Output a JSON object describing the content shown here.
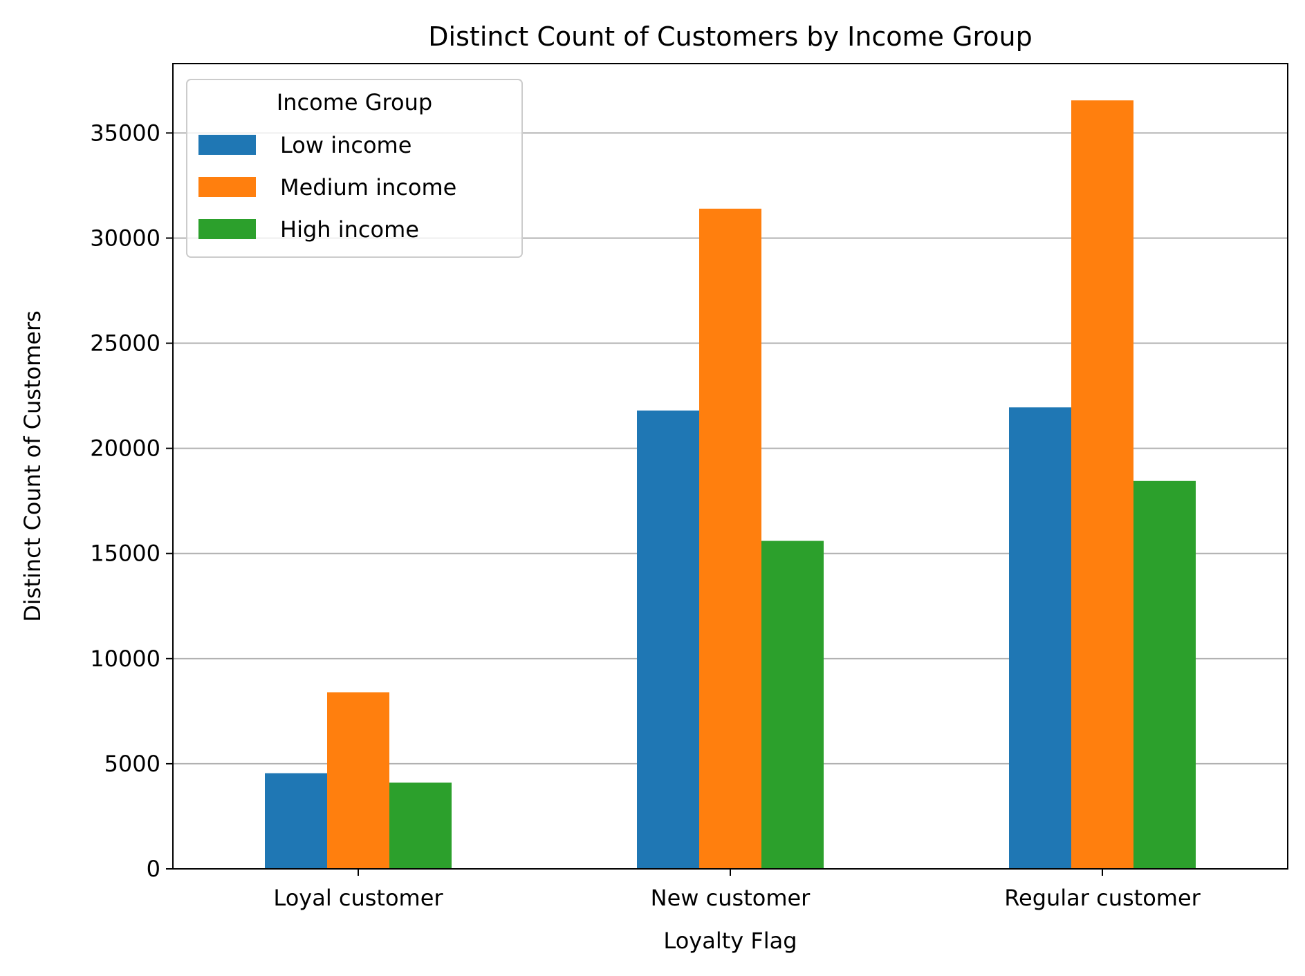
{
  "chart_data": {
    "type": "bar",
    "title": "Distinct Count of Customers by Income Group",
    "xlabel": "Loyalty Flag",
    "ylabel": "Distinct Count of Customers",
    "categories": [
      "Loyal customer",
      "New customer",
      "Regular customer"
    ],
    "series": [
      {
        "name": "Low income",
        "color": "#1f77b4",
        "values": [
          4550,
          21800,
          21950
        ]
      },
      {
        "name": "Medium income",
        "color": "#ff7f0e",
        "values": [
          8400,
          31400,
          36550
        ]
      },
      {
        "name": "High income",
        "color": "#2ca02c",
        "values": [
          4100,
          15600,
          18450
        ]
      }
    ],
    "ylim": [
      0,
      38300
    ],
    "yticks": [
      0,
      5000,
      10000,
      15000,
      20000,
      25000,
      30000,
      35000
    ],
    "grid": "y",
    "legend": {
      "title": "Income Group",
      "position": "top-left"
    }
  }
}
